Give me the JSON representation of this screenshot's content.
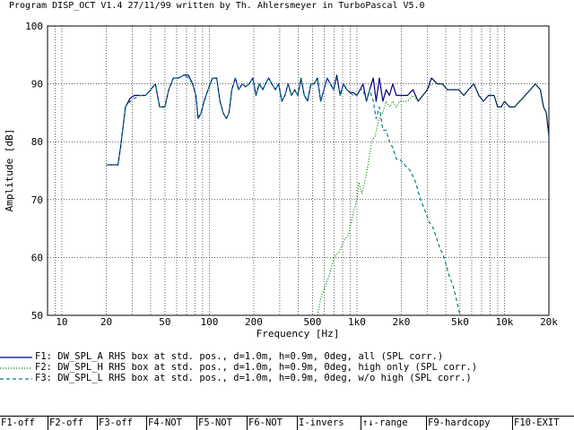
{
  "window": {
    "title": "Program DISP_OCT V1.4 27/11/99 written by Th. Ahlersmeyer in TurboPascal V5.0"
  },
  "chart_data": {
    "type": "line",
    "xscale": "log",
    "xlim": [
      8,
      20000
    ],
    "ylim": [
      50,
      100
    ],
    "grid": true,
    "xlabel": "Frequency [Hz]",
    "ylabel": "Amplitude [dB]",
    "x_ticks": [
      {
        "value": 10,
        "label": "10"
      },
      {
        "value": 20,
        "label": "20"
      },
      {
        "value": 50,
        "label": "50"
      },
      {
        "value": 100,
        "label": "100"
      },
      {
        "value": 200,
        "label": "200"
      },
      {
        "value": 500,
        "label": "500"
      },
      {
        "value": 1000,
        "label": "1k0"
      },
      {
        "value": 2000,
        "label": "2k0"
      },
      {
        "value": 5000,
        "label": "5k0"
      },
      {
        "value": 10000,
        "label": "10k"
      },
      {
        "value": 20000,
        "label": "20k"
      }
    ],
    "y_ticks": [
      {
        "value": 50,
        "label": "50"
      },
      {
        "value": 60,
        "label": "60"
      },
      {
        "value": 70,
        "label": "70"
      },
      {
        "value": 80,
        "label": "80"
      },
      {
        "value": 90,
        "label": "90"
      },
      {
        "value": 100,
        "label": "100"
      }
    ],
    "series": [
      {
        "name": "F1",
        "color": "#000080",
        "style": "solid",
        "points": [
          [
            20,
            76
          ],
          [
            22,
            76
          ],
          [
            24,
            76
          ],
          [
            25,
            79
          ],
          [
            27,
            86
          ],
          [
            29,
            87.5
          ],
          [
            31,
            88
          ],
          [
            34,
            88
          ],
          [
            37,
            88
          ],
          [
            40,
            89
          ],
          [
            43,
            90
          ],
          [
            46,
            86
          ],
          [
            50,
            86
          ],
          [
            53,
            89
          ],
          [
            57,
            91
          ],
          [
            62,
            91
          ],
          [
            67,
            91.5
          ],
          [
            72,
            91.5
          ],
          [
            77,
            90
          ],
          [
            81,
            88
          ],
          [
            84,
            84
          ],
          [
            88,
            85
          ],
          [
            92,
            87
          ],
          [
            98,
            89
          ],
          [
            105,
            91
          ],
          [
            112,
            91
          ],
          [
            118,
            87
          ],
          [
            124,
            85
          ],
          [
            130,
            84
          ],
          [
            136,
            85
          ],
          [
            142,
            89
          ],
          [
            150,
            91
          ],
          [
            158,
            89
          ],
          [
            167,
            90
          ],
          [
            176,
            89.5
          ],
          [
            186,
            90
          ],
          [
            197,
            91
          ],
          [
            207,
            88
          ],
          [
            218,
            90
          ],
          [
            230,
            89
          ],
          [
            240,
            90
          ],
          [
            252,
            91
          ],
          [
            265,
            90
          ],
          [
            280,
            89
          ],
          [
            295,
            90
          ],
          [
            310,
            87
          ],
          [
            325,
            88
          ],
          [
            342,
            90
          ],
          [
            360,
            88
          ],
          [
            378,
            89
          ],
          [
            398,
            88
          ],
          [
            418,
            91
          ],
          [
            440,
            88
          ],
          [
            463,
            87
          ],
          [
            488,
            90
          ],
          [
            513,
            90
          ],
          [
            540,
            91
          ],
          [
            568,
            87
          ],
          [
            598,
            89
          ],
          [
            628,
            91
          ],
          [
            660,
            90
          ],
          [
            695,
            89
          ],
          [
            730,
            91.5
          ],
          [
            770,
            88
          ],
          [
            810,
            90
          ],
          [
            853,
            89
          ],
          [
            898,
            88.5
          ],
          [
            945,
            88.5
          ],
          [
            1000,
            88
          ],
          [
            1050,
            89
          ],
          [
            1100,
            90
          ],
          [
            1160,
            87
          ],
          [
            1220,
            89
          ],
          [
            1290,
            91
          ],
          [
            1350,
            87
          ],
          [
            1420,
            91
          ],
          [
            1500,
            87
          ],
          [
            1580,
            89
          ],
          [
            1660,
            88
          ],
          [
            1750,
            90
          ],
          [
            1850,
            88
          ],
          [
            1950,
            88
          ],
          [
            2050,
            88
          ],
          [
            2200,
            88
          ],
          [
            2400,
            89
          ],
          [
            2600,
            87
          ],
          [
            2800,
            88
          ],
          [
            3000,
            89
          ],
          [
            3200,
            91
          ],
          [
            3500,
            90
          ],
          [
            3800,
            90
          ],
          [
            4100,
            89
          ],
          [
            4500,
            89
          ],
          [
            4900,
            89
          ],
          [
            5300,
            88
          ],
          [
            5700,
            89
          ],
          [
            6200,
            90
          ],
          [
            6700,
            88
          ],
          [
            7200,
            87
          ],
          [
            7800,
            88
          ],
          [
            8500,
            88
          ],
          [
            9000,
            86
          ],
          [
            9500,
            86
          ],
          [
            10000,
            87
          ],
          [
            10800,
            86
          ],
          [
            11700,
            86
          ],
          [
            12700,
            87
          ],
          [
            13800,
            88
          ],
          [
            15000,
            89
          ],
          [
            16200,
            90
          ],
          [
            17500,
            89
          ],
          [
            18400,
            86
          ],
          [
            19200,
            85
          ],
          [
            20000,
            81
          ]
        ]
      },
      {
        "name": "F2",
        "color": "#008000",
        "style": "dotted",
        "points": [
          [
            540,
            50
          ],
          [
            570,
            53
          ],
          [
            610,
            55
          ],
          [
            650,
            57
          ],
          [
            700,
            60
          ],
          [
            760,
            61
          ],
          [
            820,
            63
          ],
          [
            880,
            64
          ],
          [
            950,
            68
          ],
          [
            1000,
            70
          ],
          [
            1030,
            73
          ],
          [
            1080,
            71
          ],
          [
            1130,
            73
          ],
          [
            1190,
            76
          ],
          [
            1260,
            80
          ],
          [
            1330,
            81
          ],
          [
            1410,
            84
          ],
          [
            1500,
            85
          ],
          [
            1580,
            87
          ],
          [
            1660,
            86
          ],
          [
            1750,
            87
          ],
          [
            1850,
            86
          ],
          [
            1950,
            87
          ],
          [
            2050,
            87
          ],
          [
            2200,
            87
          ],
          [
            2400,
            88
          ],
          [
            2600,
            87
          ],
          [
            2800,
            88
          ],
          [
            3000,
            89
          ],
          [
            3200,
            90
          ],
          [
            3500,
            90
          ],
          [
            3800,
            90
          ],
          [
            4100,
            89
          ],
          [
            4500,
            89
          ],
          [
            4900,
            89
          ],
          [
            5300,
            88
          ],
          [
            5700,
            89
          ],
          [
            6200,
            90
          ],
          [
            6700,
            88
          ],
          [
            7200,
            87
          ],
          [
            7800,
            88
          ],
          [
            8500,
            88
          ],
          [
            9000,
            86
          ],
          [
            9500,
            86
          ],
          [
            10000,
            87
          ],
          [
            10800,
            86
          ],
          [
            11700,
            86
          ],
          [
            12700,
            87
          ],
          [
            13800,
            88
          ],
          [
            15000,
            89
          ],
          [
            16200,
            90
          ],
          [
            17500,
            89
          ],
          [
            18400,
            86
          ],
          [
            19200,
            85
          ],
          [
            20000,
            81
          ]
        ]
      },
      {
        "name": "F3",
        "color": "#008080",
        "style": "dashed",
        "points": [
          [
            20,
            76
          ],
          [
            22,
            76
          ],
          [
            24,
            76
          ],
          [
            25,
            79
          ],
          [
            27,
            86
          ],
          [
            29,
            87
          ],
          [
            31,
            87.5
          ],
          [
            34,
            88
          ],
          [
            37,
            88
          ],
          [
            40,
            89
          ],
          [
            43,
            90
          ],
          [
            46,
            86
          ],
          [
            50,
            86
          ],
          [
            53,
            89
          ],
          [
            57,
            91
          ],
          [
            62,
            91
          ],
          [
            67,
            91.5
          ],
          [
            72,
            91
          ],
          [
            77,
            90
          ],
          [
            81,
            88
          ],
          [
            84,
            84
          ],
          [
            88,
            85
          ],
          [
            92,
            87
          ],
          [
            98,
            89
          ],
          [
            105,
            91
          ],
          [
            112,
            91
          ],
          [
            118,
            87
          ],
          [
            124,
            85
          ],
          [
            130,
            84
          ],
          [
            136,
            85
          ],
          [
            142,
            89
          ],
          [
            150,
            91
          ],
          [
            158,
            89
          ],
          [
            167,
            90
          ],
          [
            176,
            89.5
          ],
          [
            186,
            90
          ],
          [
            197,
            91
          ],
          [
            207,
            88
          ],
          [
            218,
            90
          ],
          [
            230,
            89
          ],
          [
            240,
            90
          ],
          [
            252,
            91
          ],
          [
            265,
            90
          ],
          [
            280,
            89
          ],
          [
            295,
            90
          ],
          [
            310,
            87
          ],
          [
            325,
            88
          ],
          [
            342,
            90
          ],
          [
            360,
            88
          ],
          [
            378,
            89
          ],
          [
            398,
            88
          ],
          [
            418,
            91
          ],
          [
            440,
            88
          ],
          [
            463,
            87
          ],
          [
            488,
            90
          ],
          [
            513,
            90
          ],
          [
            540,
            91
          ],
          [
            568,
            87
          ],
          [
            598,
            89
          ],
          [
            628,
            91
          ],
          [
            660,
            90
          ],
          [
            695,
            89
          ],
          [
            730,
            91
          ],
          [
            770,
            88
          ],
          [
            810,
            90
          ],
          [
            853,
            89
          ],
          [
            898,
            88.5
          ],
          [
            945,
            88
          ],
          [
            1000,
            88
          ],
          [
            1050,
            89
          ],
          [
            1100,
            89
          ],
          [
            1160,
            87
          ],
          [
            1220,
            89
          ],
          [
            1290,
            87
          ],
          [
            1350,
            84
          ],
          [
            1420,
            86
          ],
          [
            1500,
            82
          ],
          [
            1580,
            82
          ],
          [
            1660,
            80
          ],
          [
            1750,
            79
          ],
          [
            1850,
            77
          ],
          [
            1950,
            77
          ],
          [
            2100,
            76
          ],
          [
            2300,
            75
          ],
          [
            2500,
            73
          ],
          [
            2700,
            70
          ],
          [
            2900,
            68
          ],
          [
            3100,
            66
          ],
          [
            3300,
            65
          ],
          [
            3600,
            62
          ],
          [
            3900,
            60
          ],
          [
            4200,
            57
          ],
          [
            4500,
            55
          ],
          [
            4800,
            52
          ],
          [
            5000,
            50
          ]
        ]
      }
    ]
  },
  "legend": [
    {
      "label": "F1: DW_SPL_A RHS box at std. pos., d=1.0m, h=0.9m, 0deg, all (SPL corr.)",
      "color": "#000080",
      "style": "solid"
    },
    {
      "label": "F2: DW_SPL_H RHS box at std. pos., d=1.0m, h=0.9m, 0deg, high only (SPL corr.)",
      "color": "#008000",
      "style": "dotted"
    },
    {
      "label": "F3: DW_SPL_L RHS box at std. pos., d=1.0m, h=0.9m, 0deg, w/o high (SPL corr.)",
      "color": "#008080",
      "style": "dashed"
    }
  ],
  "function_keys": [
    {
      "name": "f1-off-button",
      "label": "F1-off"
    },
    {
      "name": "f2-off-button",
      "label": "F2-off"
    },
    {
      "name": "f3-off-button",
      "label": "F3-off"
    },
    {
      "name": "f4-not-button",
      "label": "F4-NOT"
    },
    {
      "name": "f5-not-button",
      "label": "F5-NOT"
    },
    {
      "name": "f6-not-button",
      "label": "F6-NOT"
    },
    {
      "name": "invers-button",
      "label": "I-invers"
    },
    {
      "name": "range-button",
      "label": "↑↓-range"
    },
    {
      "name": "hardcopy-button",
      "label": "F9-hardcopy"
    },
    {
      "name": "exit-button",
      "label": "F10-EXIT"
    }
  ]
}
